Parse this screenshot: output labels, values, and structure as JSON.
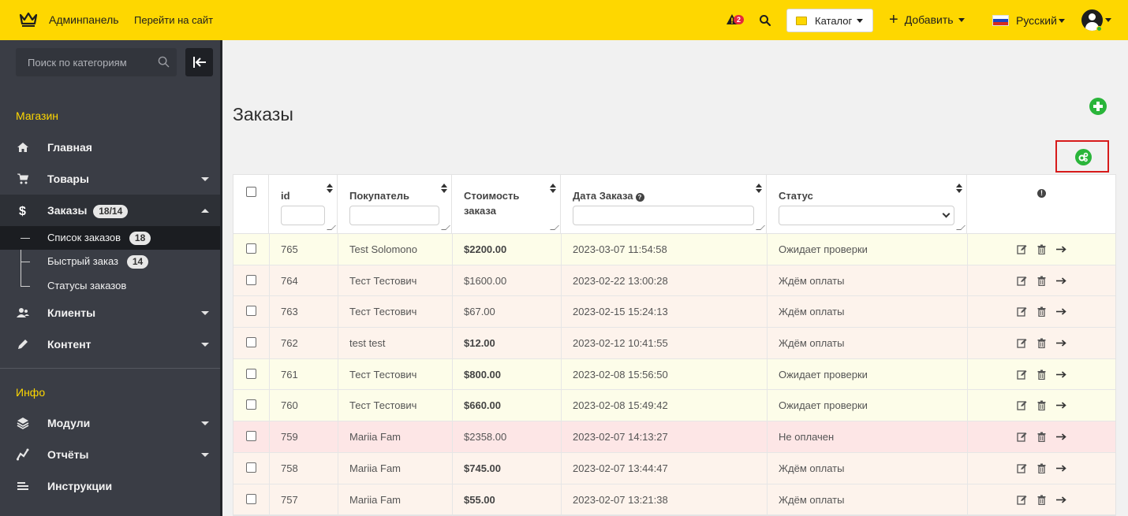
{
  "topbar": {
    "brand": "Админпанель",
    "goto_site": "Перейти на сайт",
    "warning_count": "2",
    "catalog_label": "Каталог",
    "add_label": "Добавить",
    "language_label": "Русский",
    "accent_color": "#fed700",
    "icons": [
      "crown-logo-icon",
      "warning-icon",
      "search-icon",
      "folder-icon",
      "plus-icon",
      "flag-ru-icon",
      "user-avatar-icon"
    ]
  },
  "sidebar": {
    "search_placeholder": "Поиск по категориям",
    "section_shop": "Магазин",
    "section_info": "Инфо",
    "items": {
      "home": "Главная",
      "products": "Товары",
      "orders": "Заказы",
      "orders_badge": "18/14",
      "clients": "Клиенты",
      "content": "Контент",
      "modules": "Модули",
      "reports": "Отчёты",
      "guides": "Инструкции"
    },
    "sub_items": {
      "order_list": "Список заказов",
      "order_list_badge": "18",
      "quick_order": "Быстрый заказ",
      "quick_order_badge": "14",
      "order_statuses": "Статусы заказов"
    }
  },
  "main": {
    "title": "Заказы",
    "columns": {
      "id": "id",
      "buyer": "Покупатель",
      "cost_line1": "Стоимость",
      "cost_line2": "заказа",
      "date": "Дата Заказа",
      "status": "Статус"
    },
    "rows": [
      {
        "id": "765",
        "buyer": "Test Solomono",
        "cost": "$2200.00",
        "cost_bold": true,
        "date": "2023-03-07 11:54:58",
        "status": "Ожидает проверки",
        "bg": "yellow"
      },
      {
        "id": "764",
        "buyer": "Тест Тестович",
        "cost": "$1600.00",
        "cost_bold": false,
        "date": "2023-02-22 13:00:28",
        "status": "Ждём оплаты",
        "bg": "peach"
      },
      {
        "id": "763",
        "buyer": "Тест Тестович",
        "cost": "$67.00",
        "cost_bold": false,
        "date": "2023-02-15 15:24:13",
        "status": "Ждём оплаты",
        "bg": "peach"
      },
      {
        "id": "762",
        "buyer": "test test",
        "cost": "$12.00",
        "cost_bold": true,
        "date": "2023-02-12 10:41:55",
        "status": "Ждём оплаты",
        "bg": "peach"
      },
      {
        "id": "761",
        "buyer": "Тест Тестович",
        "cost": "$800.00",
        "cost_bold": true,
        "date": "2023-02-08 15:56:50",
        "status": "Ожидает проверки",
        "bg": "yellow"
      },
      {
        "id": "760",
        "buyer": "Тест Тестович",
        "cost": "$660.00",
        "cost_bold": true,
        "date": "2023-02-08 15:49:42",
        "status": "Ожидает проверки",
        "bg": "yellow"
      },
      {
        "id": "759",
        "buyer": "Mariia Fam",
        "cost": "$2358.00",
        "cost_bold": false,
        "date": "2023-02-07 14:13:27",
        "status": "Не оплачен",
        "bg": "red"
      },
      {
        "id": "758",
        "buyer": "Mariia Fam",
        "cost": "$745.00",
        "cost_bold": true,
        "date": "2023-02-07 13:44:47",
        "status": "Ждём оплаты",
        "bg": "peach"
      },
      {
        "id": "757",
        "buyer": "Mariia Fam",
        "cost": "$55.00",
        "cost_bold": true,
        "date": "2023-02-07 13:21:38",
        "status": "Ждём оплаты",
        "bg": "peach"
      }
    ],
    "row_colors": {
      "yellow": "#fdfde9",
      "peach": "#fdf3ec",
      "red": "#fde6e6"
    },
    "action_icons": [
      "edit-icon",
      "trash-icon",
      "arrow-right-icon"
    ]
  }
}
